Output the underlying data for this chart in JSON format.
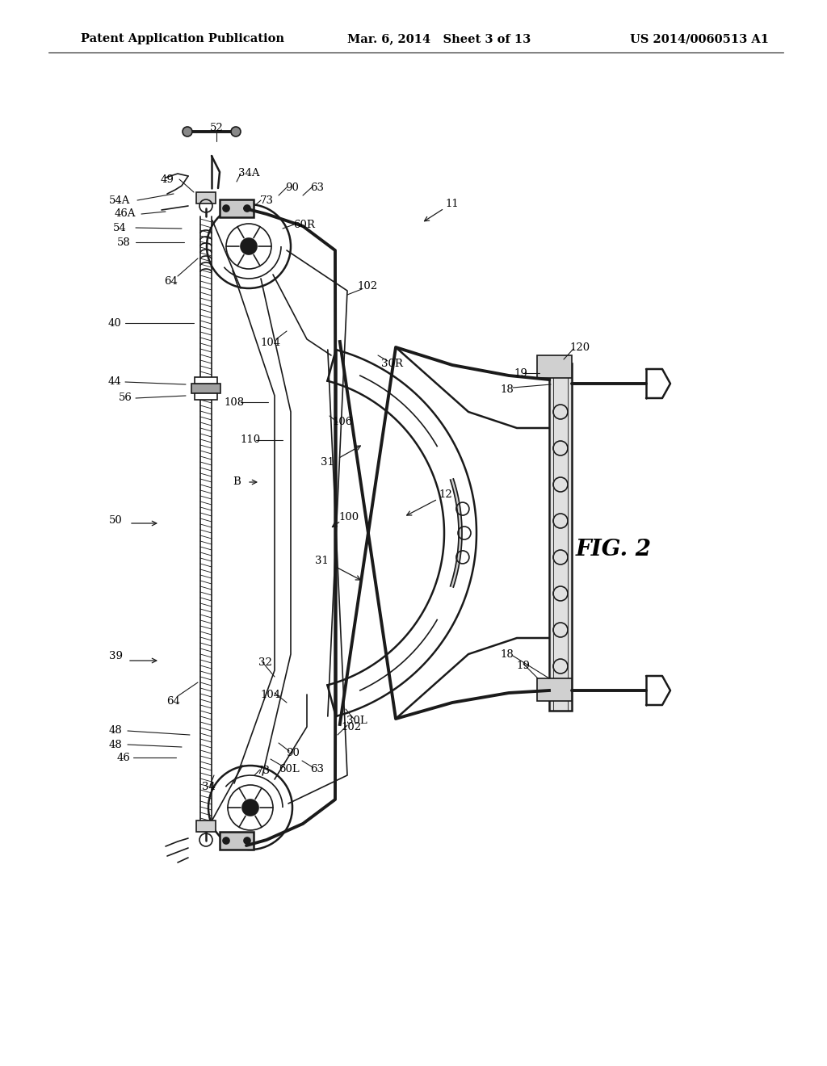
{
  "title_left": "Patent Application Publication",
  "title_mid": "Mar. 6, 2014   Sheet 3 of 13",
  "title_right": "US 2014/0060513 A1",
  "fig_label": "FIG. 2",
  "background": "#ffffff",
  "line_color": "#1a1a1a",
  "gray_fill": "#c8c8c8",
  "light_gray": "#e8e8e8",
  "header_fontsize": 10.5,
  "label_fontsize": 9.5
}
